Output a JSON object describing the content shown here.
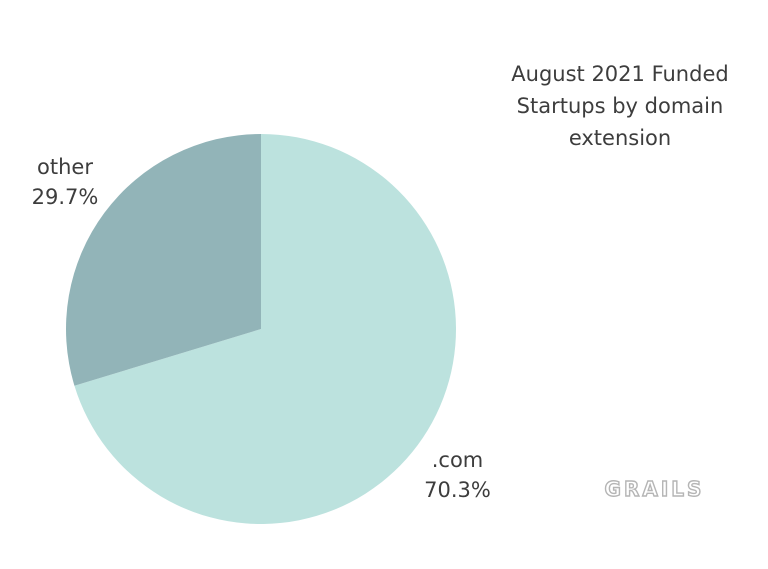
{
  "chart_data": {
    "type": "pie",
    "title_lines": [
      "August 2021 Funded",
      "Startups by domain",
      "extension"
    ],
    "slices": [
      {
        "name": ".com",
        "value": 70.3,
        "label": "70.3%",
        "color": "#bce2de"
      },
      {
        "name": "other",
        "value": 29.7,
        "label": "29.7%",
        "color": "#92b4b8"
      }
    ],
    "start_angle_deg": 0,
    "direction": "clockwise"
  },
  "logo": {
    "text": "GRAILS",
    "color": "#b5b5b5"
  }
}
